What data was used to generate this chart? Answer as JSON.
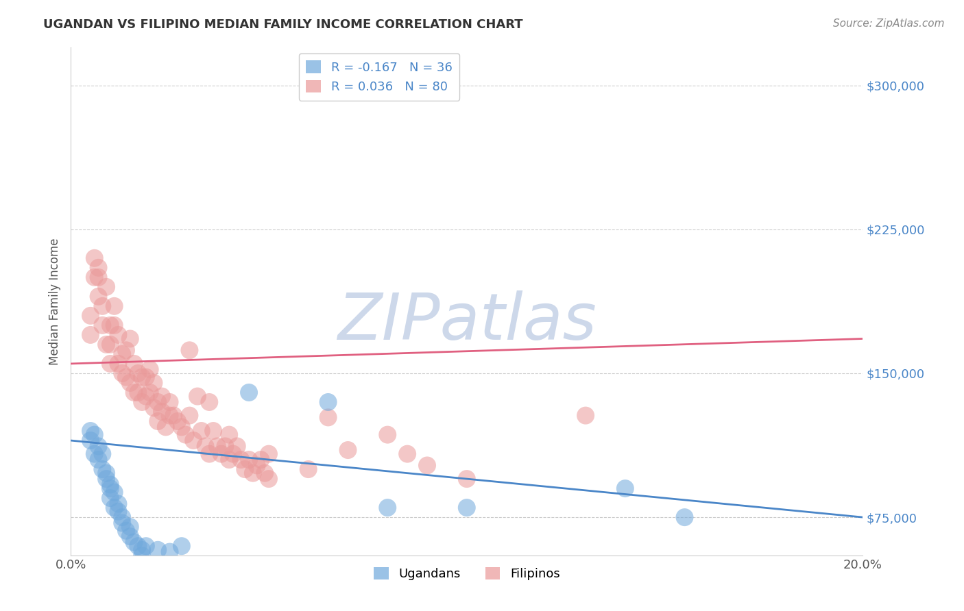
{
  "title": "UGANDAN VS FILIPINO MEDIAN FAMILY INCOME CORRELATION CHART",
  "source": "Source: ZipAtlas.com",
  "xlabel": "",
  "ylabel": "Median Family Income",
  "xlim": [
    0.0,
    0.2
  ],
  "ylim": [
    55000,
    320000
  ],
  "yticks": [
    75000,
    150000,
    225000,
    300000
  ],
  "ytick_labels": [
    "$75,000",
    "$150,000",
    "$225,000",
    "$300,000"
  ],
  "xticks": [
    0.0,
    0.05,
    0.1,
    0.15,
    0.2
  ],
  "xtick_labels": [
    "0.0%",
    "",
    "",
    "",
    "20.0%"
  ],
  "ugandan_r": -0.167,
  "ugandan_n": 36,
  "filipino_r": 0.036,
  "filipino_n": 80,
  "ugandan_color": "#6fa8dc",
  "filipino_color": "#ea9999",
  "ugandan_line_color": "#4a86c8",
  "filipino_line_color": "#e06080",
  "watermark": "ZIPatlas",
  "watermark_color": "#cdd8ea",
  "ugandan_line_x0": 0.0,
  "ugandan_line_y0": 115000,
  "ugandan_line_x1": 0.2,
  "ugandan_line_y1": 75000,
  "filipino_line_x0": 0.0,
  "filipino_line_y0": 155000,
  "filipino_line_x1": 0.2,
  "filipino_line_y1": 168000,
  "ugandan_x": [
    0.005,
    0.005,
    0.006,
    0.006,
    0.007,
    0.007,
    0.008,
    0.008,
    0.009,
    0.009,
    0.01,
    0.01,
    0.01,
    0.011,
    0.011,
    0.012,
    0.012,
    0.013,
    0.013,
    0.014,
    0.015,
    0.015,
    0.016,
    0.017,
    0.018,
    0.018,
    0.019,
    0.022,
    0.025,
    0.028,
    0.045,
    0.065,
    0.08,
    0.1,
    0.14,
    0.155
  ],
  "ugandan_y": [
    115000,
    120000,
    108000,
    118000,
    105000,
    112000,
    100000,
    108000,
    98000,
    95000,
    92000,
    90000,
    85000,
    88000,
    80000,
    82000,
    78000,
    75000,
    72000,
    68000,
    65000,
    70000,
    62000,
    60000,
    58000,
    55000,
    60000,
    58000,
    57000,
    60000,
    140000,
    135000,
    80000,
    80000,
    90000,
    75000
  ],
  "filipino_x": [
    0.005,
    0.005,
    0.006,
    0.006,
    0.007,
    0.007,
    0.007,
    0.008,
    0.008,
    0.009,
    0.009,
    0.01,
    0.01,
    0.01,
    0.011,
    0.011,
    0.012,
    0.012,
    0.013,
    0.013,
    0.014,
    0.014,
    0.015,
    0.015,
    0.016,
    0.016,
    0.017,
    0.017,
    0.018,
    0.018,
    0.019,
    0.019,
    0.02,
    0.02,
    0.021,
    0.021,
    0.022,
    0.022,
    0.023,
    0.023,
    0.024,
    0.025,
    0.026,
    0.027,
    0.028,
    0.029,
    0.03,
    0.031,
    0.032,
    0.033,
    0.034,
    0.035,
    0.036,
    0.037,
    0.038,
    0.039,
    0.04,
    0.041,
    0.042,
    0.043,
    0.044,
    0.045,
    0.046,
    0.047,
    0.048,
    0.049,
    0.05,
    0.03,
    0.035,
    0.025,
    0.04,
    0.05,
    0.06,
    0.065,
    0.07,
    0.08,
    0.085,
    0.09,
    0.1,
    0.13
  ],
  "filipino_y": [
    170000,
    180000,
    200000,
    210000,
    190000,
    200000,
    205000,
    185000,
    175000,
    195000,
    165000,
    175000,
    155000,
    165000,
    175000,
    185000,
    155000,
    170000,
    160000,
    150000,
    148000,
    162000,
    145000,
    168000,
    140000,
    155000,
    150000,
    140000,
    148000,
    135000,
    138000,
    148000,
    152000,
    140000,
    132000,
    145000,
    135000,
    125000,
    130000,
    138000,
    122000,
    135000,
    128000,
    125000,
    122000,
    118000,
    128000,
    115000,
    138000,
    120000,
    112000,
    108000,
    120000,
    112000,
    108000,
    112000,
    105000,
    108000,
    112000,
    105000,
    100000,
    105000,
    98000,
    102000,
    105000,
    98000,
    95000,
    162000,
    135000,
    128000,
    118000,
    108000,
    100000,
    127000,
    110000,
    118000,
    108000,
    102000,
    95000,
    128000
  ]
}
